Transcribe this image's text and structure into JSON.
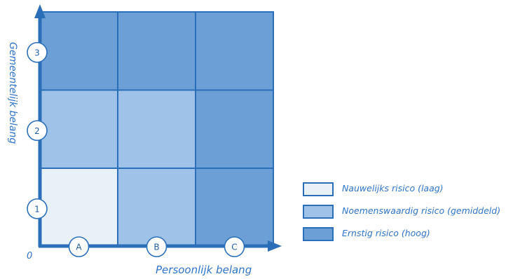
{
  "axes": {
    "y_label": "Gemeentelijk belang",
    "x_label": "Persoonlijk belang",
    "origin_label": "0",
    "y_levels": [
      "1",
      "2",
      "3"
    ],
    "x_levels": [
      "A",
      "B",
      "C"
    ]
  },
  "colors": {
    "low": "#e9f1f8",
    "medium": "#9fc3e8",
    "high": "#6b9fd6",
    "stroke": "#2c6fb9",
    "text": "#2f74c8"
  },
  "matrix": {
    "rows_top_to_bottom": [
      [
        "high",
        "high",
        "high"
      ],
      [
        "medium",
        "medium",
        "high"
      ],
      [
        "low",
        "medium",
        "high"
      ]
    ]
  },
  "legend": [
    {
      "level": "low",
      "label": "Nauwelijks risico (laag)"
    },
    {
      "level": "medium",
      "label": "Noemenswaardig risico (gemiddeld)"
    },
    {
      "level": "high",
      "label": "Ernstig risico (hoog)"
    }
  ]
}
